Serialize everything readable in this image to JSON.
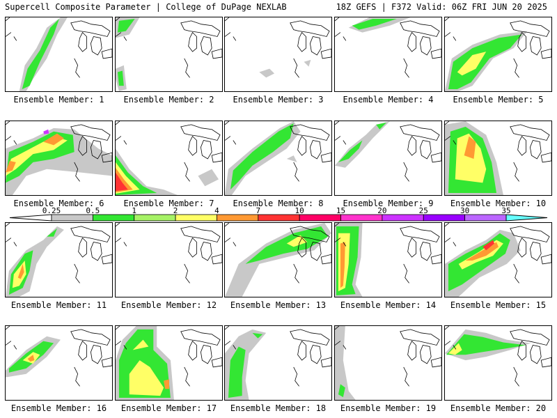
{
  "header": {
    "left": "Supercell Composite Parameter | College of DuPage NEXLAB",
    "right": "18Z GEFS | F372 Valid: 06Z FRI JUN 20 2025"
  },
  "colorbar": {
    "levels": [
      "0.25",
      "0.5",
      "1",
      "2",
      "4",
      "7",
      "10",
      "15",
      "20",
      "25",
      "30",
      "35"
    ],
    "colors": [
      "#c8c8c8",
      "#33e633",
      "#a6f266",
      "#ffff66",
      "#ff9933",
      "#ff3333",
      "#ff0066",
      "#ff33cc",
      "#cc33ff",
      "#9900ff",
      "#bb66ff",
      "#66ffff"
    ]
  },
  "members": [
    {
      "label": "Ensemble Member: 1"
    },
    {
      "label": "Ensemble Member: 2"
    },
    {
      "label": "Ensemble Member: 3"
    },
    {
      "label": "Ensemble Member: 4"
    },
    {
      "label": "Ensemble Member: 5"
    },
    {
      "label": "Ensemble Member: 6"
    },
    {
      "label": "Ensemble Member: 7"
    },
    {
      "label": "Ensemble Member: 8"
    },
    {
      "label": "Ensemble Member: 9"
    },
    {
      "label": "Ensemble Member: 10"
    },
    {
      "label": "Ensemble Member: 11"
    },
    {
      "label": "Ensemble Member: 12"
    },
    {
      "label": "Ensemble Member: 13"
    },
    {
      "label": "Ensemble Member: 14"
    },
    {
      "label": "Ensemble Member: 15"
    },
    {
      "label": "Ensemble Member: 16"
    },
    {
      "label": "Ensemble Member: 17"
    },
    {
      "label": "Ensemble Member: 18"
    },
    {
      "label": "Ensemble Member: 19"
    },
    {
      "label": "Ensemble Member: 20"
    }
  ]
}
